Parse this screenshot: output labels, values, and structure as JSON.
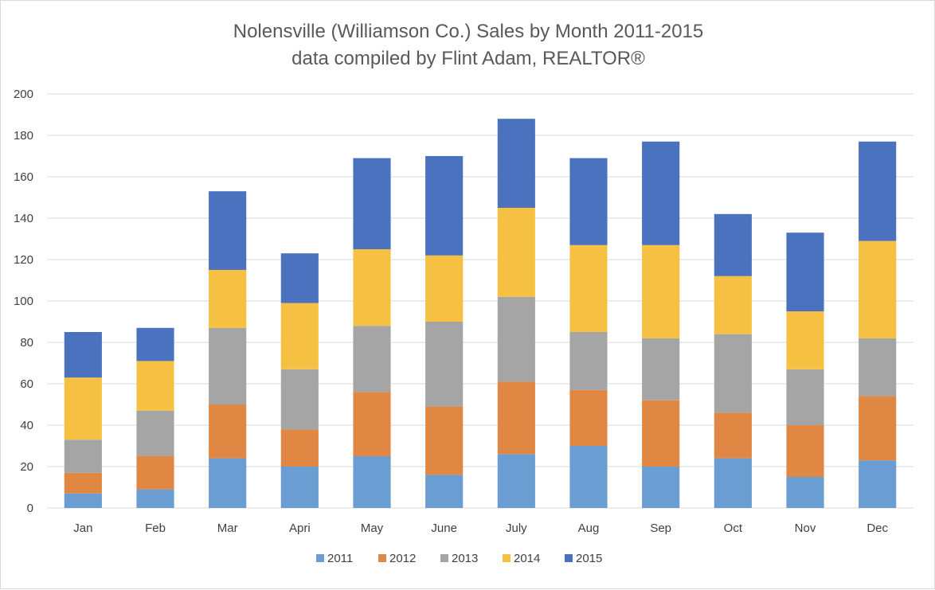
{
  "chart_data": {
    "type": "bar",
    "stacked": true,
    "title": "Nolensville (Williamson Co.) Sales by Month 2011-2015",
    "subtitle": "data compiled by Flint Adam, REALTOR®",
    "xlabel": "",
    "ylabel": "",
    "ylim": [
      0,
      200
    ],
    "y_ticks": [
      0,
      20,
      40,
      60,
      80,
      100,
      120,
      140,
      160,
      180,
      200
    ],
    "grid": true,
    "legend_position": "bottom",
    "categories": [
      "Jan",
      "Feb",
      "Mar",
      "Apri",
      "May",
      "June",
      "July",
      "Aug",
      "Sep",
      "Oct",
      "Nov",
      "Dec"
    ],
    "series": [
      {
        "name": "2011",
        "color": "#6a9ed3",
        "values": [
          7,
          9,
          24,
          20,
          25,
          16,
          26,
          30,
          20,
          24,
          15,
          23
        ]
      },
      {
        "name": "2012",
        "color": "#e08743",
        "values": [
          10,
          16,
          26,
          18,
          31,
          33,
          35,
          27,
          32,
          22,
          25,
          31
        ]
      },
      {
        "name": "2013",
        "color": "#a5a5a5",
        "values": [
          16,
          22,
          37,
          29,
          32,
          41,
          41,
          28,
          30,
          38,
          27,
          28
        ]
      },
      {
        "name": "2014",
        "color": "#f6c142",
        "values": [
          30,
          24,
          28,
          32,
          37,
          32,
          43,
          42,
          45,
          28,
          28,
          47
        ]
      },
      {
        "name": "2015",
        "color": "#4b72be",
        "values": [
          22,
          16,
          38,
          24,
          44,
          48,
          43,
          42,
          50,
          30,
          38,
          48
        ]
      }
    ]
  }
}
